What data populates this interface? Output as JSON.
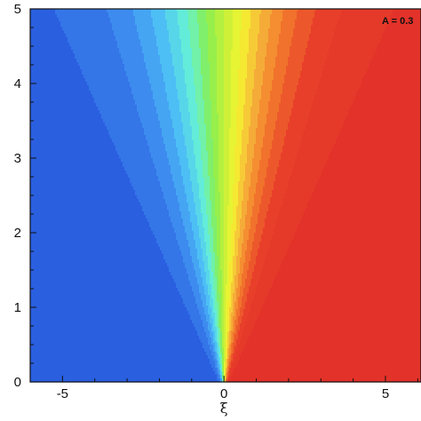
{
  "chart_data": {
    "type": "heatmap",
    "title": "",
    "xlabel": "ξ",
    "ylabel": "",
    "annotation": "A = 0.3",
    "xlim": [
      -6,
      6.1
    ],
    "ylim": [
      0,
      5
    ],
    "x_ticks": [
      -5,
      0,
      5
    ],
    "y_ticks": [
      0,
      1,
      2,
      3,
      4,
      5
    ],
    "x_tick_labels": [
      "-5",
      "0",
      "5"
    ],
    "y_tick_labels": [
      "0",
      "1",
      "2",
      "3",
      "4",
      "5"
    ],
    "levels": 22,
    "colormap": [
      "#2a5fe0",
      "#3e8df0",
      "#4fc4f6",
      "#66f3d4",
      "#86ee52",
      "#c2f03a",
      "#f5f530",
      "#f6b43a",
      "#f2772c",
      "#e8402a",
      "#e3322a"
    ],
    "grid": false,
    "legend": "none"
  }
}
